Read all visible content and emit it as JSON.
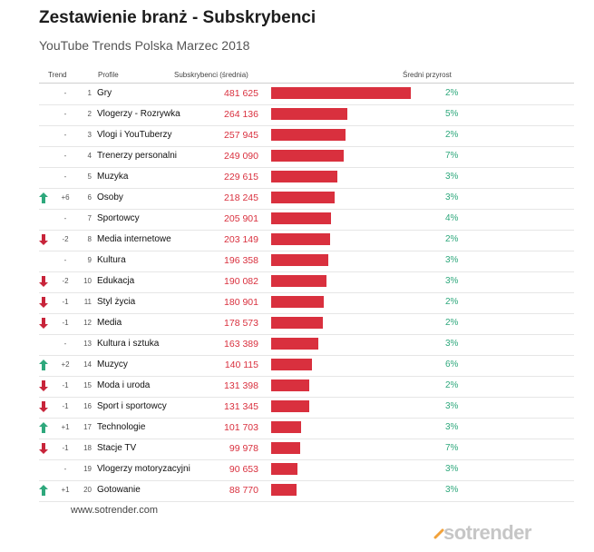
{
  "title": "Zestawienie branż - Subskrybenci",
  "subtitle": "YouTube Trends Polska Marzec 2018",
  "headers": {
    "trend": "Trend",
    "profile": "Profile",
    "subscribers": "Subskrybenci (średnia)",
    "growth": "Średni przyrost"
  },
  "footer": "www.sotrender.com",
  "logo": "sotrender",
  "colors": {
    "bar": "#d9303e",
    "up": "#2ea87c",
    "down": "#c8243a",
    "growth": "#2ea87c"
  },
  "chart_data": {
    "type": "bar",
    "orientation": "horizontal",
    "title": "Zestawienie branż - Subskrybenci",
    "subtitle": "YouTube Trends Polska Marzec 2018",
    "xlim": [
      0,
      481625
    ],
    "rows": [
      {
        "trend": "none",
        "change": "-",
        "rank": "1",
        "name": "Gry",
        "value": 481625,
        "value_label": "481 625",
        "growth": "2%"
      },
      {
        "trend": "none",
        "change": "-",
        "rank": "2",
        "name": "Vlogerzy - Rozrywka",
        "value": 264136,
        "value_label": "264 136",
        "growth": "5%"
      },
      {
        "trend": "none",
        "change": "-",
        "rank": "3",
        "name": "Vlogi i YouTuberzy",
        "value": 257945,
        "value_label": "257 945",
        "growth": "2%"
      },
      {
        "trend": "none",
        "change": "-",
        "rank": "4",
        "name": "Trenerzy personalni",
        "value": 249090,
        "value_label": "249 090",
        "growth": "7%"
      },
      {
        "trend": "none",
        "change": "-",
        "rank": "5",
        "name": "Muzyka",
        "value": 229615,
        "value_label": "229 615",
        "growth": "3%"
      },
      {
        "trend": "up",
        "change": "+6",
        "rank": "6",
        "name": "Osoby",
        "value": 218245,
        "value_label": "218 245",
        "growth": "3%"
      },
      {
        "trend": "none",
        "change": "-",
        "rank": "7",
        "name": "Sportowcy",
        "value": 205901,
        "value_label": "205 901",
        "growth": "4%"
      },
      {
        "trend": "down",
        "change": "-2",
        "rank": "8",
        "name": "Media internetowe",
        "value": 203149,
        "value_label": "203 149",
        "growth": "2%"
      },
      {
        "trend": "none",
        "change": "-",
        "rank": "9",
        "name": "Kultura",
        "value": 196358,
        "value_label": "196 358",
        "growth": "3%"
      },
      {
        "trend": "down",
        "change": "-2",
        "rank": "10",
        "name": "Edukacja",
        "value": 190082,
        "value_label": "190 082",
        "growth": "3%"
      },
      {
        "trend": "down",
        "change": "-1",
        "rank": "11",
        "name": "Styl życia",
        "value": 180901,
        "value_label": "180 901",
        "growth": "2%"
      },
      {
        "trend": "down",
        "change": "-1",
        "rank": "12",
        "name": "Media",
        "value": 178573,
        "value_label": "178 573",
        "growth": "2%"
      },
      {
        "trend": "none",
        "change": "-",
        "rank": "13",
        "name": "Kultura i sztuka",
        "value": 163389,
        "value_label": "163 389",
        "growth": "3%"
      },
      {
        "trend": "up",
        "change": "+2",
        "rank": "14",
        "name": "Muzycy",
        "value": 140115,
        "value_label": "140 115",
        "growth": "6%"
      },
      {
        "trend": "down",
        "change": "-1",
        "rank": "15",
        "name": "Moda i uroda",
        "value": 131398,
        "value_label": "131 398",
        "growth": "2%"
      },
      {
        "trend": "down",
        "change": "-1",
        "rank": "16",
        "name": "Sport i sportowcy",
        "value": 131345,
        "value_label": "131 345",
        "growth": "3%"
      },
      {
        "trend": "up",
        "change": "+1",
        "rank": "17",
        "name": "Technologie",
        "value": 101703,
        "value_label": "101 703",
        "growth": "3%"
      },
      {
        "trend": "down",
        "change": "-1",
        "rank": "18",
        "name": "Stacje TV",
        "value": 99978,
        "value_label": "99 978",
        "growth": "7%"
      },
      {
        "trend": "none",
        "change": "-",
        "rank": "19",
        "name": "Vlogerzy motoryzacyjni",
        "value": 90653,
        "value_label": "90 653",
        "growth": "3%"
      },
      {
        "trend": "up",
        "change": "+1",
        "rank": "20",
        "name": "Gotowanie",
        "value": 88770,
        "value_label": "88 770",
        "growth": "3%"
      }
    ]
  }
}
